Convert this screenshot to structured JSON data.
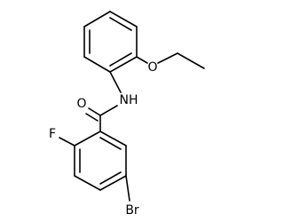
{
  "atoms": [
    {
      "label": "O"
    },
    {
      "label": "NH"
    },
    {
      "label": "O"
    },
    {
      "label": "F"
    },
    {
      "label": "Br"
    }
  ]
}
